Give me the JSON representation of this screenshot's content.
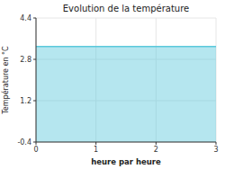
{
  "chart_data": {
    "type": "area",
    "title": "Evolution de la température",
    "x_label": "heure par heure",
    "y_label": "Température en °C",
    "x": [
      0,
      3
    ],
    "values": [
      3.3,
      3.3
    ],
    "color": "#5bc8dc",
    "xlim": [
      0,
      3
    ],
    "ylim": [
      -0.4,
      4.4
    ],
    "xticks": [
      0,
      1,
      2,
      3
    ],
    "yticks": [
      -0.4,
      1.2,
      2.8,
      4.4
    ],
    "grid": true
  }
}
